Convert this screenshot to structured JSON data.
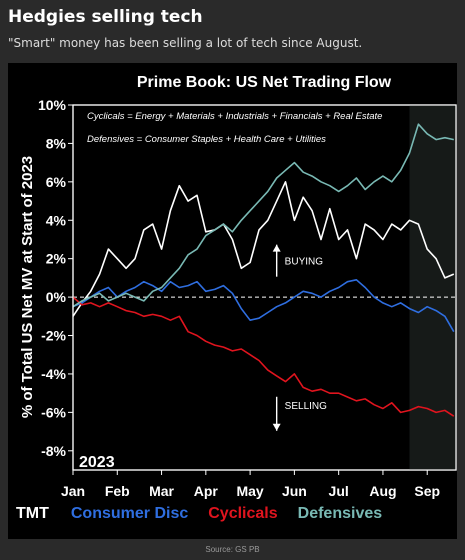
{
  "card": {
    "title": "Hedgies selling tech",
    "subtitle": "\"Smart\" money has been selling a lot of tech since August.",
    "source": "Source: GS PB"
  },
  "chart_data": {
    "type": "line",
    "title": "Prime Book: US Net Trading Flow",
    "ylabel": "% of Total US Net MV at Start of 2023",
    "year_label": "2023",
    "ylim": [
      -9,
      10
    ],
    "yticks": [
      10,
      8,
      6,
      4,
      2,
      0,
      -2,
      -4,
      -6,
      -8
    ],
    "ytick_labels": [
      "10%",
      "8%",
      "6%",
      "4%",
      "2%",
      "0%",
      "-2%",
      "-4%",
      "-6%",
      "-8%"
    ],
    "xlim": [
      0,
      8.65
    ],
    "xticks": [
      0,
      1,
      2,
      3,
      4,
      5,
      6,
      7,
      8
    ],
    "xtick_labels": [
      "Jan",
      "Feb",
      "Mar",
      "Apr",
      "May",
      "Jun",
      "Jul",
      "Aug",
      "Sep"
    ],
    "shaded_from": 7.6,
    "annotations": [
      {
        "text": "Cyclicals = Energy + Materials + Industrials + Financials + Real Estate"
      },
      {
        "text": "Defensives = Consumer Staples + Health Care + Utilities"
      },
      {
        "text": "BUYING",
        "arrow": "up",
        "x": 4.6,
        "y": 2.0
      },
      {
        "text": "SELLING",
        "arrow": "down",
        "x": 4.6,
        "y": -5.5
      }
    ],
    "legend_position": "bottom",
    "series": [
      {
        "name": "TMT",
        "color": "#ffffff",
        "x": [
          0,
          0.2,
          0.4,
          0.6,
          0.8,
          1.0,
          1.2,
          1.4,
          1.6,
          1.8,
          2.0,
          2.2,
          2.4,
          2.6,
          2.8,
          3.0,
          3.2,
          3.4,
          3.6,
          3.8,
          4.0,
          4.2,
          4.4,
          4.6,
          4.8,
          5.0,
          5.2,
          5.4,
          5.6,
          5.8,
          6.0,
          6.2,
          6.4,
          6.6,
          6.8,
          7.0,
          7.2,
          7.4,
          7.6,
          7.8,
          8.0,
          8.2,
          8.4,
          8.6
        ],
        "y": [
          -1.0,
          -0.3,
          0.3,
          1.2,
          2.5,
          2.0,
          1.5,
          2.0,
          3.5,
          3.8,
          2.5,
          4.5,
          5.8,
          5.0,
          5.3,
          3.4,
          3.5,
          3.8,
          3.0,
          1.5,
          1.8,
          3.5,
          4.0,
          5.0,
          6.0,
          4.0,
          5.2,
          4.5,
          3.0,
          4.6,
          3.0,
          3.5,
          2.0,
          3.8,
          3.5,
          3.0,
          3.8,
          3.5,
          4.0,
          3.8,
          2.5,
          2.0,
          1.0,
          1.2
        ]
      },
      {
        "name": "Consumer Disc",
        "color": "#2f6ee0",
        "x": [
          0,
          0.2,
          0.4,
          0.6,
          0.8,
          1.0,
          1.2,
          1.4,
          1.6,
          1.8,
          2.0,
          2.2,
          2.4,
          2.6,
          2.8,
          3.0,
          3.2,
          3.4,
          3.6,
          3.8,
          4.0,
          4.2,
          4.4,
          4.6,
          4.8,
          5.0,
          5.2,
          5.4,
          5.6,
          5.8,
          6.0,
          6.2,
          6.4,
          6.6,
          6.8,
          7.0,
          7.2,
          7.4,
          7.6,
          7.8,
          8.0,
          8.2,
          8.4,
          8.6
        ],
        "y": [
          -0.5,
          -0.3,
          0.0,
          0.3,
          0.5,
          0.0,
          0.3,
          0.5,
          0.8,
          0.6,
          0.3,
          0.8,
          0.5,
          0.6,
          0.8,
          0.3,
          0.4,
          0.6,
          0.2,
          -0.6,
          -1.2,
          -1.1,
          -0.8,
          -0.5,
          -0.3,
          0.0,
          0.3,
          0.2,
          0.0,
          0.3,
          0.5,
          0.8,
          0.9,
          0.5,
          0.0,
          -0.3,
          -0.5,
          -0.3,
          -0.6,
          -0.8,
          -0.5,
          -0.7,
          -1.0,
          -1.8
        ]
      },
      {
        "name": "Cyclicals",
        "color": "#e0141e",
        "x": [
          0,
          0.2,
          0.4,
          0.6,
          0.8,
          1.0,
          1.2,
          1.4,
          1.6,
          1.8,
          2.0,
          2.2,
          2.4,
          2.6,
          2.8,
          3.0,
          3.2,
          3.4,
          3.6,
          3.8,
          4.0,
          4.2,
          4.4,
          4.6,
          4.8,
          5.0,
          5.2,
          5.4,
          5.6,
          5.8,
          6.0,
          6.2,
          6.4,
          6.6,
          6.8,
          7.0,
          7.2,
          7.4,
          7.6,
          7.8,
          8.0,
          8.2,
          8.4,
          8.6
        ],
        "y": [
          0.0,
          -0.4,
          -0.3,
          -0.5,
          -0.3,
          -0.5,
          -0.7,
          -0.8,
          -1.0,
          -0.9,
          -1.0,
          -1.2,
          -1.0,
          -1.8,
          -2.0,
          -2.3,
          -2.5,
          -2.6,
          -2.8,
          -2.7,
          -3.0,
          -3.3,
          -3.8,
          -4.1,
          -4.4,
          -4.0,
          -4.7,
          -4.9,
          -4.8,
          -5.0,
          -5.0,
          -5.2,
          -5.4,
          -5.3,
          -5.6,
          -5.8,
          -5.5,
          -6.0,
          -5.9,
          -5.7,
          -5.8,
          -6.0,
          -5.9,
          -6.2
        ]
      },
      {
        "name": "Defensives",
        "color": "#79b9b4",
        "x": [
          0,
          0.2,
          0.4,
          0.6,
          0.8,
          1.0,
          1.2,
          1.4,
          1.6,
          1.8,
          2.0,
          2.2,
          2.4,
          2.6,
          2.8,
          3.0,
          3.2,
          3.4,
          3.6,
          3.8,
          4.0,
          4.2,
          4.4,
          4.6,
          4.8,
          5.0,
          5.2,
          5.4,
          5.6,
          5.8,
          6.0,
          6.2,
          6.4,
          6.6,
          6.8,
          7.0,
          7.2,
          7.4,
          7.6,
          7.8,
          8.0,
          8.2,
          8.4,
          8.6
        ],
        "y": [
          -0.5,
          -0.2,
          0.0,
          0.2,
          -0.2,
          0.0,
          0.2,
          0.0,
          -0.2,
          0.3,
          0.5,
          1.0,
          1.5,
          2.2,
          2.5,
          3.2,
          3.5,
          3.8,
          3.4,
          4.0,
          4.5,
          5.0,
          5.5,
          6.2,
          6.6,
          7.0,
          6.5,
          6.3,
          6.0,
          5.8,
          5.5,
          5.8,
          6.2,
          5.6,
          6.0,
          6.3,
          6.0,
          6.6,
          7.5,
          9.0,
          8.5,
          8.2,
          8.3,
          8.2
        ]
      }
    ]
  }
}
